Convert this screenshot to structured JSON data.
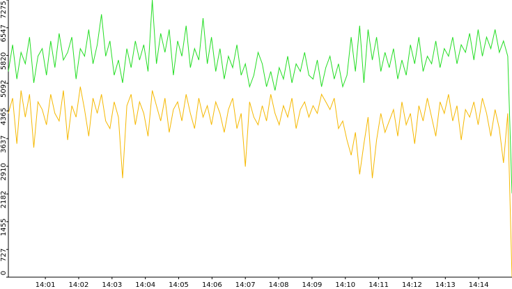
{
  "chart_data": {
    "type": "line",
    "xlim": [
      -0.11,
      15.0
    ],
    "xticks": [
      {
        "value": 1,
        "label": "14:01"
      },
      {
        "value": 2,
        "label": "14:02"
      },
      {
        "value": 3,
        "label": "14:03"
      },
      {
        "value": 4,
        "label": "14:04"
      },
      {
        "value": 5,
        "label": "14:05"
      },
      {
        "value": 6,
        "label": "14:06"
      },
      {
        "value": 7,
        "label": "14:07"
      },
      {
        "value": 8,
        "label": "14:08"
      },
      {
        "value": 9,
        "label": "14:09"
      },
      {
        "value": 10,
        "label": "14:10"
      },
      {
        "value": 11,
        "label": "14:11"
      },
      {
        "value": 12,
        "label": "14:12"
      },
      {
        "value": 13,
        "label": "14:13"
      },
      {
        "value": 14,
        "label": "14:14"
      }
    ],
    "ylim": [
      0,
      7275
    ],
    "yticks": [
      0,
      727,
      1455,
      2182,
      2910,
      3637,
      4365,
      5092,
      5820,
      6547,
      7275
    ],
    "series": [
      {
        "color": "#22dd22",
        "values": [
          5400,
          6100,
          5200,
          5900,
          5600,
          6300,
          5100,
          5800,
          6000,
          5300,
          6200,
          5500,
          6400,
          5700,
          5900,
          6300,
          5200,
          6000,
          5800,
          6500,
          5600,
          6100,
          6900,
          5800,
          6200,
          5300,
          5700,
          5100,
          6000,
          5500,
          6200,
          5700,
          6100,
          5400,
          7275,
          5600,
          6400,
          5900,
          6500,
          5300,
          6200,
          5800,
          6600,
          5500,
          6000,
          5700,
          6800,
          5600,
          6300,
          5400,
          6000,
          5200,
          5800,
          5500,
          6100,
          5300,
          5600,
          5000,
          5300,
          5900,
          5600,
          5000,
          5400,
          4900,
          5500,
          5200,
          5800,
          5100,
          5600,
          5400,
          5900,
          5300,
          5200,
          5700,
          5000,
          5500,
          5800,
          5200,
          5600,
          5000,
          5300,
          6300,
          5400,
          6600,
          5100,
          6500,
          5700,
          6300,
          5400,
          5900,
          5500,
          6000,
          5200,
          5700,
          5300,
          6100,
          5600,
          6300,
          5400,
          5800,
          5600,
          6200,
          5500,
          6000,
          5800,
          6300,
          5600,
          6100,
          5900,
          6400,
          5700,
          6500,
          5800,
          6300,
          6000,
          6500,
          5900,
          6200,
          5800,
          2200
        ]
      },
      {
        "color": "#f5b800",
        "values": [
          4300,
          4700,
          3500,
          4900,
          4200,
          4800,
          3400,
          4600,
          4400,
          4000,
          4800,
          4300,
          4100,
          4900,
          3600,
          4500,
          4200,
          5000,
          4400,
          3700,
          4700,
          4300,
          4800,
          4100,
          3900,
          4600,
          4200,
          2600,
          4500,
          4800,
          4000,
          4600,
          4300,
          3700,
          4900,
          4500,
          4100,
          4700,
          3800,
          4400,
          4600,
          4100,
          4800,
          4300,
          3900,
          4700,
          4200,
          4500,
          4000,
          4600,
          4300,
          3800,
          4400,
          4700,
          3900,
          4300,
          2900,
          4600,
          4200,
          4000,
          4500,
          4100,
          4800,
          4300,
          4000,
          4500,
          4200,
          4700,
          3900,
          4400,
          4600,
          4200,
          4500,
          4300,
          4800,
          4600,
          4400,
          4700,
          3900,
          4100,
          3600,
          3200,
          3800,
          2700,
          3500,
          4200,
          2600,
          3600,
          4300,
          3800,
          4100,
          4400,
          3700,
          4600,
          4000,
          4300,
          3500,
          4500,
          4100,
          4700,
          4200,
          3700,
          4600,
          4300,
          4800,
          4100,
          4500,
          3600,
          4400,
          4200,
          4600,
          4000,
          4700,
          4300,
          3700,
          4400,
          3900,
          3000,
          4300,
          0
        ]
      }
    ]
  }
}
